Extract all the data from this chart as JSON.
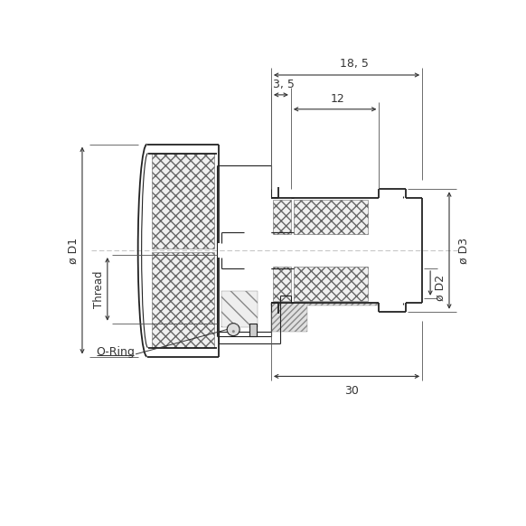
{
  "bg_color": "#ffffff",
  "line_color": "#222222",
  "figsize": [
    5.82,
    5.82
  ],
  "dpi": 100,
  "labels": {
    "d1": "ø D1",
    "d2": "ø D2",
    "d3": "ø D3",
    "thread": "Thread",
    "oring": "O-Ring",
    "dim_185": "18, 5",
    "dim_35": "3, 5",
    "dim_12": "12",
    "dim_30": "30"
  }
}
